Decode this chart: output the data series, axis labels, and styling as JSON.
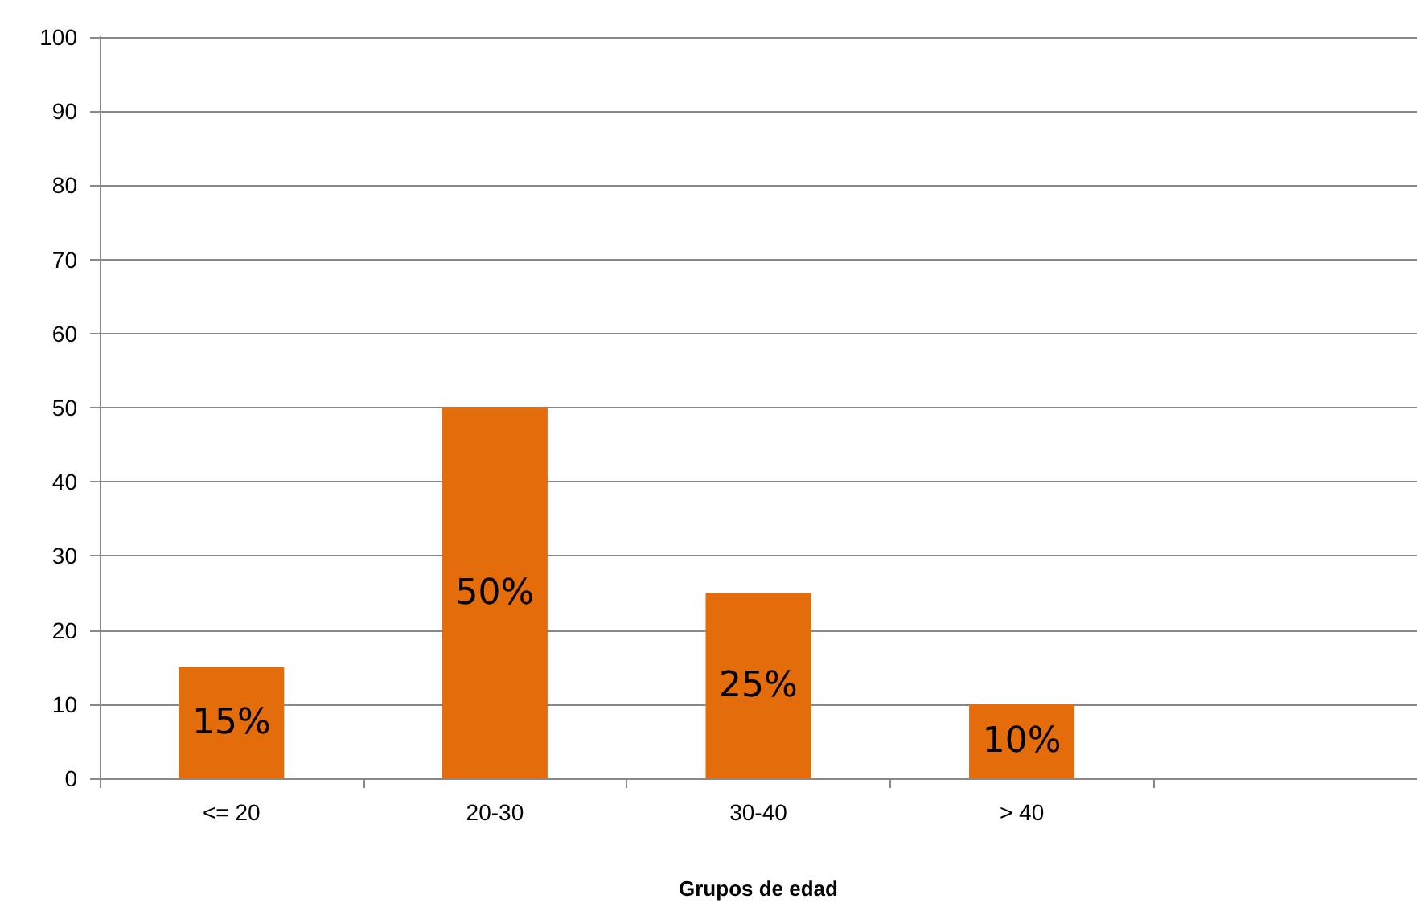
{
  "chart_data": {
    "type": "bar",
    "xlabel": "Grupos de edad",
    "categories": [
      "<= 20",
      "20-30",
      "30-40",
      "> 40",
      null
    ],
    "values": [
      15,
      50,
      25,
      10,
      null
    ],
    "value_labels": [
      "15%",
      "50%",
      "25%",
      "10%",
      null
    ],
    "color": "#e46c0a",
    "ylim": [
      0,
      100
    ],
    "yticks": [
      0,
      10,
      20,
      30,
      40,
      50,
      60,
      70,
      80,
      90,
      100
    ],
    "grid": "y"
  }
}
